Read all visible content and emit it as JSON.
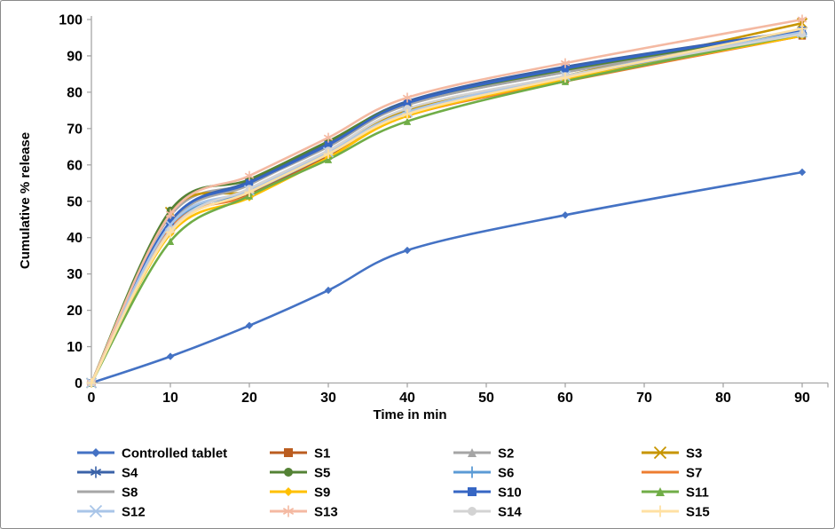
{
  "frame": {
    "background": "#ffffff",
    "border_color": "#8a8a8a",
    "axis_color": "#a6a6a6",
    "text_color": "#000000"
  },
  "chart_data": {
    "type": "line",
    "title": "",
    "xlabel": "Time in min",
    "ylabel": "Cumulative % release",
    "x": [
      0,
      10,
      20,
      30,
      40,
      60,
      90
    ],
    "x_ticks": [
      0,
      10,
      20,
      30,
      40,
      50,
      60,
      70,
      80,
      90
    ],
    "y_ticks": [
      0,
      10,
      20,
      30,
      40,
      50,
      60,
      70,
      80,
      90,
      100
    ],
    "xlim": [
      0,
      93
    ],
    "ylim": [
      0,
      100
    ],
    "grid": false,
    "smooth_lines": true,
    "legend_position": "bottom",
    "legend_columns": 4,
    "series": [
      {
        "name": "Controlled tablet",
        "color": "#4472C4",
        "marker": "diamond",
        "values": [
          0,
          7.3,
          15.8,
          25.5,
          36.5,
          46.2,
          58
        ]
      },
      {
        "name": "S1",
        "color": "#BB5D20",
        "marker": "square",
        "values": [
          0,
          42,
          52,
          62.5,
          74,
          83.5,
          95.5
        ]
      },
      {
        "name": "S2",
        "color": "#A5A5A5",
        "marker": "triangle",
        "values": [
          0,
          46,
          55,
          65,
          76.5,
          85.5,
          96.5
        ]
      },
      {
        "name": "S3",
        "color": "#C79500",
        "marker": "x",
        "values": [
          0,
          47,
          53,
          63.5,
          75,
          84.5,
          99
        ]
      },
      {
        "name": "S4",
        "color": "#3A62A8",
        "marker": "star",
        "values": [
          0,
          44.5,
          55.5,
          66,
          77.5,
          87,
          97
        ]
      },
      {
        "name": "S5",
        "color": "#548235",
        "marker": "circle",
        "values": [
          0,
          47.5,
          56,
          66.5,
          77,
          86,
          96.5
        ]
      },
      {
        "name": "S6",
        "color": "#5B9BD5",
        "marker": "plus",
        "values": [
          0,
          43,
          52.5,
          63,
          74.5,
          84,
          96
        ]
      },
      {
        "name": "S7",
        "color": "#ED7D31",
        "marker": "none",
        "values": [
          0,
          42.5,
          51.5,
          62,
          73.5,
          83,
          95.5
        ]
      },
      {
        "name": "S8",
        "color": "#A6A6A6",
        "marker": "none",
        "values": [
          0,
          44,
          54.5,
          65.5,
          76.5,
          85.5,
          96
        ]
      },
      {
        "name": "S9",
        "color": "#FFC000",
        "marker": "diamond",
        "values": [
          0,
          41,
          51,
          62,
          73.5,
          83.5,
          95.5
        ]
      },
      {
        "name": "S10",
        "color": "#3666C4",
        "marker": "square",
        "values": [
          0,
          44.5,
          55,
          65.5,
          77,
          86.5,
          97
        ]
      },
      {
        "name": "S11",
        "color": "#70AD47",
        "marker": "triangle",
        "values": [
          0,
          39,
          51.5,
          61.5,
          72,
          83,
          96
        ]
      },
      {
        "name": "S12",
        "color": "#A9C5E8",
        "marker": "x",
        "values": [
          0,
          43.5,
          53,
          63.5,
          74.5,
          84.5,
          96.5
        ]
      },
      {
        "name": "S13",
        "color": "#F4B9A2",
        "marker": "star",
        "values": [
          0,
          46.5,
          57,
          67.5,
          78.5,
          88,
          100
        ]
      },
      {
        "name": "S14",
        "color": "#D3D3D3",
        "marker": "circle",
        "values": [
          0,
          42,
          53.5,
          64,
          75.5,
          84.5,
          96
        ]
      },
      {
        "name": "S15",
        "color": "#FFE0A3",
        "marker": "plus",
        "values": [
          0,
          41.5,
          52.5,
          63,
          74,
          84,
          97.5
        ]
      }
    ]
  }
}
